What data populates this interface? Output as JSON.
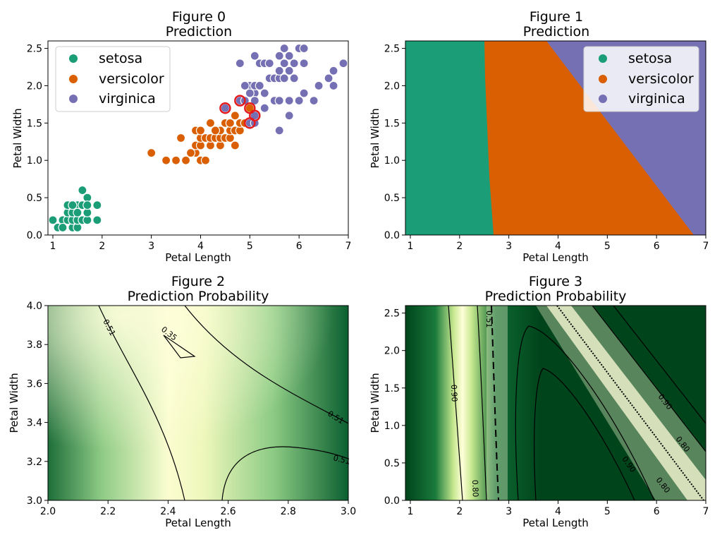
{
  "colors": {
    "setosa": "#1b9e77",
    "versicolor": "#d95f02",
    "virginica": "#7570b3",
    "highlight_edge": "#e41a1c",
    "prob_light": "#ffffd9",
    "prob_dark": "#00441b"
  },
  "chart_data": [
    {
      "type": "scatter",
      "title": "Figure 0",
      "subtitle": "Prediction",
      "xlabel": "Petal Length",
      "ylabel": "Petal Width",
      "xlim": [
        0.9,
        7.0
      ],
      "ylim": [
        0.0,
        2.6
      ],
      "xticks": [
        "1",
        "2",
        "3",
        "4",
        "5",
        "6",
        "7"
      ],
      "yticks": [
        "0.0",
        "0.5",
        "1.0",
        "1.5",
        "2.0",
        "2.5"
      ],
      "legend": {
        "position": "top-left",
        "entries": [
          "setosa",
          "versicolor",
          "virginica"
        ]
      },
      "series": [
        {
          "name": "setosa",
          "points": [
            [
              1.0,
              0.2
            ],
            [
              1.1,
              0.1
            ],
            [
              1.2,
              0.2
            ],
            [
              1.3,
              0.2
            ],
            [
              1.3,
              0.3
            ],
            [
              1.3,
              0.4
            ],
            [
              1.4,
              0.1
            ],
            [
              1.4,
              0.2
            ],
            [
              1.4,
              0.3
            ],
            [
              1.5,
              0.1
            ],
            [
              1.5,
              0.2
            ],
            [
              1.5,
              0.4
            ],
            [
              1.6,
              0.2
            ],
            [
              1.6,
              0.6
            ],
            [
              1.7,
              0.2
            ],
            [
              1.7,
              0.3
            ],
            [
              1.7,
              0.5
            ],
            [
              1.9,
              0.2
            ],
            [
              1.9,
              0.4
            ],
            [
              1.5,
              0.3
            ],
            [
              1.6,
              0.4
            ],
            [
              1.4,
              0.4
            ],
            [
              1.7,
              0.4
            ],
            [
              1.2,
              0.1
            ]
          ]
        },
        {
          "name": "versicolor",
          "points": [
            [
              3.0,
              1.1
            ],
            [
              3.3,
              1.0
            ],
            [
              3.5,
              1.0
            ],
            [
              3.7,
              1.0
            ],
            [
              3.9,
              1.1
            ],
            [
              4.0,
              1.0
            ],
            [
              4.1,
              1.0
            ],
            [
              3.6,
              1.3
            ],
            [
              3.8,
              1.1
            ],
            [
              3.9,
              1.2
            ],
            [
              4.0,
              1.2
            ],
            [
              4.0,
              1.3
            ],
            [
              4.1,
              1.3
            ],
            [
              4.2,
              1.2
            ],
            [
              4.2,
              1.3
            ],
            [
              4.3,
              1.3
            ],
            [
              3.9,
              1.4
            ],
            [
              4.4,
              1.2
            ],
            [
              4.4,
              1.3
            ],
            [
              4.4,
              1.4
            ],
            [
              4.5,
              1.3
            ],
            [
              4.5,
              1.5
            ],
            [
              4.6,
              1.3
            ],
            [
              4.6,
              1.4
            ],
            [
              4.6,
              1.5
            ],
            [
              4.7,
              1.2
            ],
            [
              4.7,
              1.4
            ],
            [
              4.8,
              1.4
            ],
            [
              4.8,
              1.5
            ],
            [
              4.9,
              1.5
            ],
            [
              5.0,
              1.7
            ],
            [
              5.1,
              1.6
            ],
            [
              4.5,
              1.7
            ],
            [
              4.9,
              1.5
            ],
            [
              4.2,
              1.5
            ],
            [
              4.7,
              1.6
            ],
            [
              4.0,
              1.4
            ],
            [
              4.3,
              1.4
            ],
            [
              5.0,
              1.5
            ]
          ]
        },
        {
          "name": "virginica",
          "points": [
            [
              4.5,
              1.7
            ],
            [
              4.8,
              1.8
            ],
            [
              4.9,
              1.8
            ],
            [
              5.0,
              1.5
            ],
            [
              5.1,
              1.5
            ],
            [
              5.1,
              1.6
            ],
            [
              5.0,
              2.0
            ],
            [
              5.1,
              1.9
            ],
            [
              5.1,
              2.0
            ],
            [
              5.2,
              2.0
            ],
            [
              5.2,
              2.3
            ],
            [
              5.3,
              1.9
            ],
            [
              5.3,
              2.3
            ],
            [
              5.4,
              2.1
            ],
            [
              5.4,
              2.3
            ],
            [
              5.5,
              1.8
            ],
            [
              5.5,
              2.1
            ],
            [
              5.6,
              1.4
            ],
            [
              5.6,
              1.8
            ],
            [
              5.6,
              2.1
            ],
            [
              5.6,
              2.2
            ],
            [
              5.6,
              2.4
            ],
            [
              5.7,
              2.1
            ],
            [
              5.7,
              2.3
            ],
            [
              5.7,
              2.5
            ],
            [
              5.8,
              1.6
            ],
            [
              5.8,
              1.8
            ],
            [
              5.8,
              2.2
            ],
            [
              5.9,
              2.1
            ],
            [
              5.9,
              2.3
            ],
            [
              6.0,
              1.8
            ],
            [
              6.0,
              2.5
            ],
            [
              6.1,
              1.9
            ],
            [
              6.1,
              2.3
            ],
            [
              6.1,
              2.5
            ],
            [
              6.3,
              1.8
            ],
            [
              6.4,
              2.0
            ],
            [
              6.6,
              2.1
            ],
            [
              6.7,
              2.0
            ],
            [
              6.7,
              2.2
            ],
            [
              6.9,
              2.3
            ],
            [
              5.8,
              2.4
            ],
            [
              5.1,
              2.4
            ],
            [
              4.8,
              2.3
            ],
            [
              4.9,
              2.0
            ],
            [
              5.0,
              1.9
            ],
            [
              5.1,
              1.8
            ],
            [
              5.3,
              1.7
            ]
          ]
        }
      ],
      "highlighted": [
        [
          4.5,
          1.7
        ],
        [
          4.8,
          1.8
        ],
        [
          5.0,
          1.7
        ],
        [
          5.1,
          1.6
        ],
        [
          5.0,
          1.5
        ]
      ]
    },
    {
      "type": "heatmap",
      "title": "Figure 1",
      "subtitle": "Prediction",
      "xlabel": "Petal Length",
      "ylabel": "Petal Width",
      "xlim": [
        0.9,
        7.0
      ],
      "ylim": [
        0.0,
        2.6
      ],
      "xticks": [
        "1",
        "2",
        "3",
        "4",
        "5",
        "6",
        "7"
      ],
      "yticks": [
        "0.0",
        "0.5",
        "1.0",
        "1.5",
        "2.0",
        "2.5"
      ],
      "legend": {
        "position": "top-right",
        "entries": [
          "setosa",
          "versicolor",
          "virginica"
        ]
      },
      "regions": [
        {
          "name": "setosa",
          "boundary_top_x": 2.5,
          "boundary_bottom_x": 2.75
        },
        {
          "name": "versicolor",
          "boundary_top_x": 3.7,
          "boundary_bottom_x": 6.7
        },
        {
          "name": "virginica"
        }
      ]
    },
    {
      "type": "heatmap",
      "title": "Figure 2",
      "subtitle": "Prediction Probability",
      "xlabel": "Petal Length",
      "ylabel": "Petal Width",
      "xlim": [
        2.0,
        3.0
      ],
      "ylim": [
        3.0,
        4.0
      ],
      "xticks": [
        "2.0",
        "2.2",
        "2.4",
        "2.6",
        "2.8",
        "3.0"
      ],
      "yticks": [
        "3.0",
        "3.2",
        "3.4",
        "3.6",
        "3.8",
        "4.0"
      ],
      "contour_labels": [
        "0.51",
        "0.35",
        "0.51",
        "0.51"
      ]
    },
    {
      "type": "heatmap",
      "title": "Figure 3",
      "subtitle": "Prediction Probability",
      "xlabel": "Petal Length",
      "ylabel": "Petal Width",
      "xlim": [
        0.9,
        7.0
      ],
      "ylim": [
        0.0,
        2.6
      ],
      "xticks": [
        "1",
        "2",
        "3",
        "4",
        "5",
        "6",
        "7"
      ],
      "yticks": [
        "0.0",
        "0.5",
        "1.0",
        "1.5",
        "2.0",
        "2.5"
      ],
      "contour_labels": [
        "0.51",
        "0.90",
        "0.80",
        "0.90",
        "0.80",
        "0.90",
        "0.80"
      ]
    }
  ]
}
